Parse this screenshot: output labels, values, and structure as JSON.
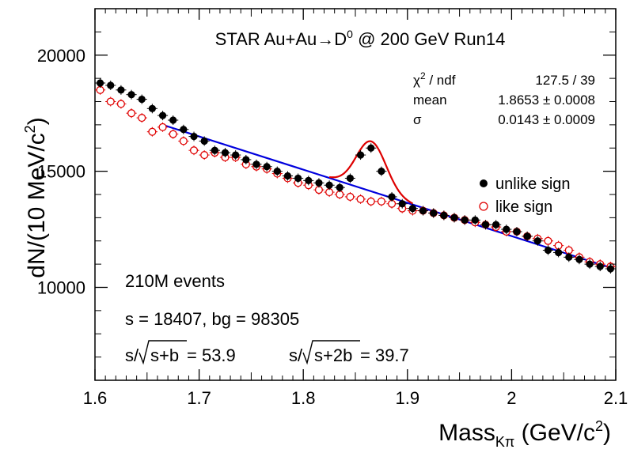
{
  "chart_data": {
    "type": "scatter",
    "title_parts": {
      "pre": "STAR Au+Au",
      "arrow": "→",
      "particle": "D",
      "superscript": "0",
      "post": " @ 200 GeV Run14"
    },
    "xlabel": {
      "main": "Mass",
      "subscript": "Kπ",
      "unit_pre": " (GeV/c",
      "unit_sup": "2",
      "unit_post": ")"
    },
    "ylabel": {
      "main": "dN/(10 MeV/c",
      "sup": "2",
      "post": ")"
    },
    "xlim": [
      1.6,
      2.1
    ],
    "ylim": [
      6000,
      22000
    ],
    "x_ticks": [
      1.6,
      1.7,
      1.8,
      1.9,
      2.0,
      2.1
    ],
    "x_tick_labels": [
      "1.6",
      "1.7",
      "1.8",
      "1.9",
      "2",
      "2.1"
    ],
    "y_ticks": [
      10000,
      15000,
      20000
    ],
    "y_tick_labels": [
      "10000",
      "15000",
      "20000"
    ],
    "grid": false,
    "legend_position": "right",
    "series": [
      {
        "name": "unlike sign",
        "color": "#000000",
        "marker": "filled-circle",
        "x": [
          1.605,
          1.615,
          1.625,
          1.635,
          1.645,
          1.655,
          1.665,
          1.675,
          1.685,
          1.695,
          1.705,
          1.715,
          1.725,
          1.735,
          1.745,
          1.755,
          1.765,
          1.775,
          1.785,
          1.795,
          1.805,
          1.815,
          1.825,
          1.835,
          1.845,
          1.855,
          1.865,
          1.875,
          1.885,
          1.895,
          1.905,
          1.915,
          1.925,
          1.935,
          1.945,
          1.955,
          1.965,
          1.975,
          1.985,
          1.995,
          2.005,
          2.015,
          2.025,
          2.035,
          2.045,
          2.055,
          2.065,
          2.075,
          2.085,
          2.095
        ],
        "y": [
          18800,
          18700,
          18500,
          18300,
          18100,
          17700,
          17400,
          17200,
          16800,
          16500,
          16300,
          15900,
          15800,
          15700,
          15500,
          15300,
          15200,
          15000,
          14800,
          14700,
          14600,
          14500,
          14400,
          14300,
          14700,
          15700,
          16000,
          15000,
          13900,
          13600,
          13400,
          13300,
          13200,
          13100,
          13000,
          12900,
          12900,
          12700,
          12700,
          12500,
          12400,
          12200,
          12000,
          11600,
          11500,
          11300,
          11200,
          11000,
          10900,
          10800
        ]
      },
      {
        "name": "like sign",
        "color": "#e00000",
        "marker": "open-circle",
        "x": [
          1.605,
          1.615,
          1.625,
          1.635,
          1.645,
          1.655,
          1.665,
          1.675,
          1.685,
          1.695,
          1.705,
          1.715,
          1.725,
          1.735,
          1.745,
          1.755,
          1.765,
          1.775,
          1.785,
          1.795,
          1.805,
          1.815,
          1.825,
          1.835,
          1.845,
          1.855,
          1.865,
          1.875,
          1.885,
          1.895,
          1.905,
          1.915,
          1.925,
          1.935,
          1.945,
          1.955,
          1.965,
          1.975,
          1.985,
          1.995,
          2.005,
          2.015,
          2.025,
          2.035,
          2.045,
          2.055,
          2.065,
          2.075,
          2.085,
          2.095
        ],
        "y": [
          18500,
          18000,
          17900,
          17500,
          17300,
          16700,
          16900,
          16600,
          16300,
          15900,
          15700,
          15800,
          15600,
          15600,
          15300,
          15200,
          15100,
          14900,
          14700,
          14500,
          14400,
          14200,
          14100,
          14000,
          13900,
          13800,
          13700,
          13700,
          13600,
          13400,
          13300,
          13300,
          13200,
          13100,
          13000,
          12900,
          12800,
          12700,
          12600,
          12400,
          12400,
          12200,
          12100,
          12000,
          11800,
          11600,
          11300,
          11100,
          11000,
          10900
        ]
      }
    ],
    "fits": [
      {
        "name": "background fit",
        "color": "#0000dd",
        "x": [
          1.665,
          2.095
        ],
        "y": [
          17000,
          10850
        ]
      },
      {
        "name": "signal fit",
        "color": "#dd0000",
        "x_range": [
          1.825,
          1.905
        ],
        "mean": 1.8653,
        "sigma": 0.0143,
        "peak_above_bg": 2150
      }
    ],
    "stats_box": [
      {
        "label_pre": "χ",
        "label_sup": "2",
        "label_post": " / ndf",
        "value": "127.5 / 39"
      },
      {
        "label_pre": "mean",
        "label_sup": "",
        "label_post": "",
        "value": "1.8653 ± 0.0008"
      },
      {
        "label_pre": "σ",
        "label_sup": "",
        "label_post": "",
        "value": "0.0143 ± 0.0009"
      }
    ],
    "annotations": {
      "events": "210M events",
      "counts": "s = 18407,  bg = 98305",
      "sig1_pre": "s/",
      "sig1_inner": "s+b",
      "sig1_post": " = 53.9",
      "sig2_pre": "s/",
      "sig2_inner": "s+2b",
      "sig2_post": " = 39.7"
    }
  }
}
